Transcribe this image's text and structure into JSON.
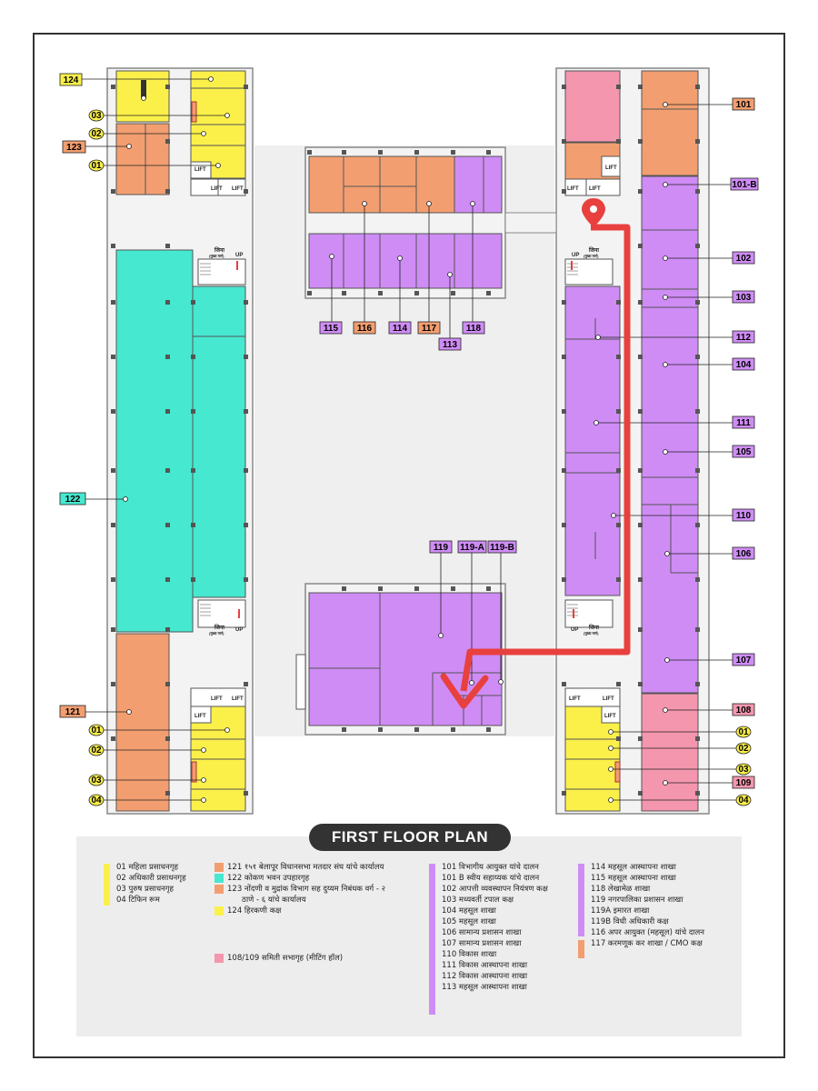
{
  "title": "FIRST FLOOR PLAN",
  "colors": {
    "yellow": "#fbf04a",
    "orange": "#f29e70",
    "teal": "#46e8d0",
    "purple": "#cf8cf5",
    "pink": "#f496ae",
    "route": "#e8403e",
    "pin": "#e8403e"
  },
  "rooms": [
    "101",
    "101-B",
    "102",
    "103",
    "112",
    "104",
    "111",
    "105",
    "110",
    "106",
    "107",
    "108",
    "109",
    "115",
    "116",
    "114",
    "117",
    "118",
    "113",
    "119",
    "119-A",
    "119-B",
    "124",
    "123",
    "122",
    "121"
  ],
  "toilet_numbers": [
    "01",
    "02",
    "03",
    "04"
  ],
  "lift_label": "LIFT",
  "stair_label": "जिना",
  "stair_sub": "(मुख्य मार्ग)",
  "up_label": "UP",
  "legend": {
    "col1": [
      "01 महिला प्रसाधनगृह",
      "02 अधिकारी प्रसाधनगृह",
      "03 पुरुष प्रसाधनगृह",
      "04 टिफिन रूम"
    ],
    "col2": [
      {
        "text": "121 १५१ बेलापूर विधानसभा मतदार संघ यांचे कार्यालय",
        "color": "orange"
      },
      {
        "text": "122 कोकण भवन उपहारगृह",
        "color": "teal"
      },
      {
        "text": "123 नोंदणी व मुद्रांक विभाग सह दुय्यम निबंधक वर्ग - २",
        "color": "orange"
      },
      {
        "text": "ठाणे - ६ यांचे कार्यालय",
        "color": ""
      },
      {
        "text": "124 हिरकणी कक्ष",
        "color": "yellow"
      }
    ],
    "col2b": "108/109 समिती सभागृह (मीटिंग हॉल)",
    "col3": [
      "101 विभागीय आयुक्त यांचे दालन",
      "101 B स्वीय सहाय्यक यांचे दालन",
      "102 आपत्ती व्यवस्थापन नियंत्रण कक्ष",
      "103 मध्यवर्ती टपाल कक्ष",
      "104 महसूल शाखा",
      "105 महसूल शाखा",
      "106 सामान्य प्रशासन शाखा",
      "107 सामान्य प्रशासन शाखा",
      "110 विकास शाखा",
      "111 विकास आस्थापना शाखा",
      "112 विकास आस्थापना शाखा",
      "113 महसूल आस्थापना शाखा"
    ],
    "col4": [
      "114 महसूल आस्थापना शाखा",
      "115 महसूल आस्थापना शाखा",
      "118 लेखामेळ शाखा",
      "119 नगरपालिका प्रशासन शाखा",
      "119A इमारत शाखा",
      "119B विधी अधिकारी कक्ष"
    ],
    "col4b": [
      "116 अपर आयुक्त (महसूल) यांचे दालन",
      "117 करमणूक कर शाखा / CMO कक्ष"
    ]
  }
}
